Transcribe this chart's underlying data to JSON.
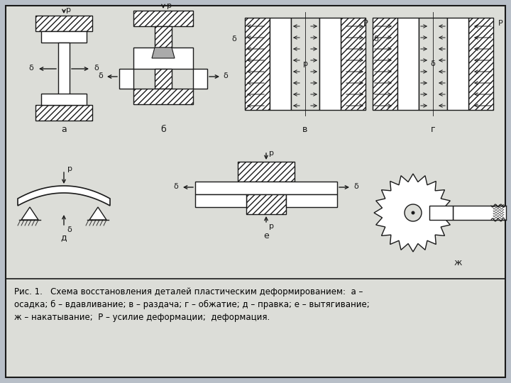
{
  "caption_line1": "Рис. 1.   Схема восстановления деталей пластическим деформированием:  а –",
  "caption_line2": "осадка; б – вдавливание; в – раздача; г – обжатие; д – правка; е – вытягивание;",
  "caption_line3": "ж – накатывание;  Р – усилие деформации;  деформация.",
  "bg_color": "#b8bfc8",
  "paper_color": "#dcddd8",
  "border_color": "#1a1a1a"
}
